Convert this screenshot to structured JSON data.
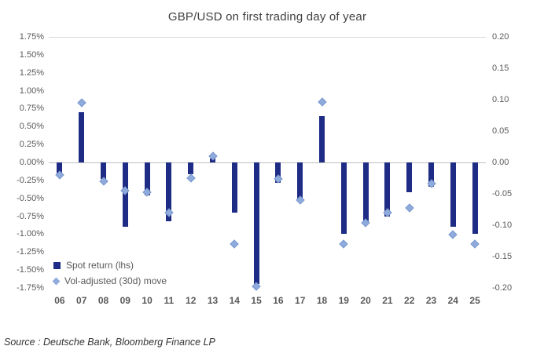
{
  "source": "Source : Deutsche Bank, Bloomberg Finance LP",
  "colors": {
    "bar": "#1f2c85",
    "diamond": "#8faadc",
    "diamond_border": "#7a99cc",
    "zero_line": "#bfbfbf",
    "top_line": "#d9d9d9"
  },
  "chart_data": {
    "type": "bar",
    "title": "GBP/USD on first trading day of year",
    "categories": [
      "06",
      "07",
      "08",
      "09",
      "10",
      "11",
      "12",
      "13",
      "14",
      "15",
      "16",
      "17",
      "18",
      "19",
      "20",
      "21",
      "22",
      "23",
      "24",
      "25"
    ],
    "series": [
      {
        "name": "Spot return (lhs)",
        "type": "bar",
        "axis": "left",
        "unit": "%",
        "color": "#1f2c85",
        "values": [
          -0.15,
          0.7,
          -0.23,
          -0.9,
          -0.46,
          -0.82,
          -0.16,
          0.05,
          -0.7,
          -1.69,
          -0.28,
          -0.5,
          0.65,
          -1.0,
          -0.84,
          -0.76,
          -0.42,
          -0.34,
          -0.9,
          -1.0
        ]
      },
      {
        "name": "Vol-adjusted (30d) move",
        "type": "scatter",
        "marker": "diamond",
        "axis": "right",
        "color": "#8faadc",
        "values": [
          -0.02,
          0.095,
          -0.03,
          -0.045,
          -0.047,
          -0.08,
          -0.025,
          0.01,
          -0.13,
          -0.197,
          -0.026,
          -0.06,
          0.096,
          -0.13,
          -0.096,
          -0.08,
          -0.073,
          -0.034,
          -0.115,
          -0.13
        ]
      }
    ],
    "left_axis": {
      "min": -1.75,
      "max": 1.75,
      "step": 0.25,
      "format": "percent",
      "ticks": [
        "1.75%",
        "1.50%",
        "1.25%",
        "1.00%",
        "0.75%",
        "0.50%",
        "0.25%",
        "0.00%",
        "-0.25%",
        "-0.50%",
        "-0.75%",
        "-1.00%",
        "-1.25%",
        "-1.50%",
        "-1.75%"
      ]
    },
    "right_axis": {
      "min": -0.2,
      "max": 0.2,
      "step": 0.05,
      "ticks": [
        "0.20",
        "0.15",
        "0.10",
        "0.05",
        "0.00",
        "-0.05",
        "-0.10",
        "-0.15",
        "-0.20"
      ]
    },
    "legend": [
      {
        "label": "Spot return (lhs)",
        "marker": "square",
        "color": "#1f2c85"
      },
      {
        "label": "Vol-adjusted (30d) move",
        "marker": "diamond",
        "color": "#8faadc"
      }
    ],
    "grid": "off",
    "legend_position": "bottom-left-inside"
  }
}
